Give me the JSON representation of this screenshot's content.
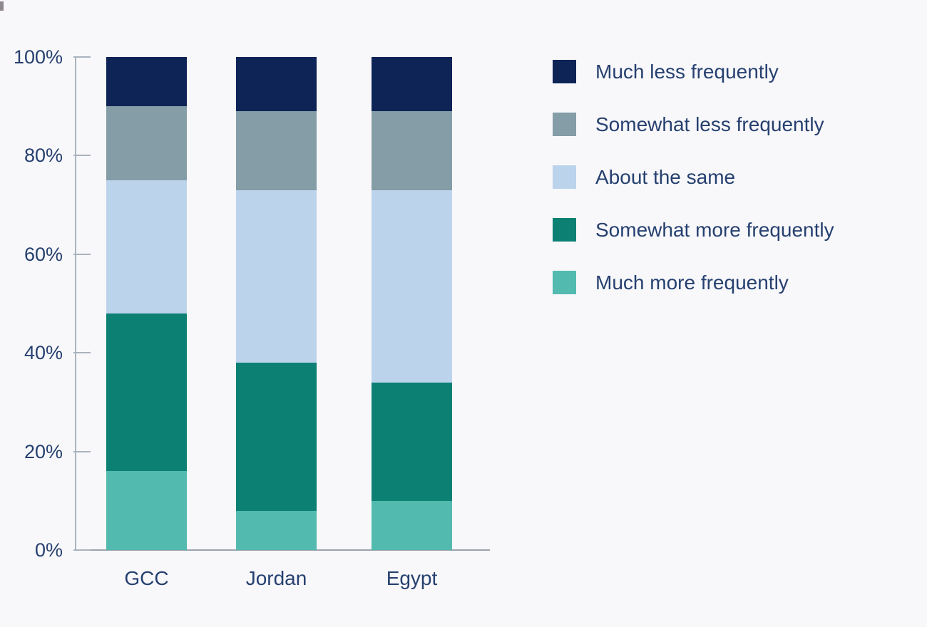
{
  "colors": {
    "background": "#f8f8fb",
    "text": "#26406f",
    "axis": "#aab3be"
  },
  "chart_data": {
    "type": "bar",
    "variant": "stacked-100-percent-column",
    "categories": [
      "GCC",
      "Jordan",
      "Egypt"
    ],
    "series": [
      {
        "name": "Much less frequently",
        "color": "#0e2456",
        "values": [
          10,
          11,
          11
        ]
      },
      {
        "name": "Somewhat less frequently",
        "color": "#849da6",
        "values": [
          15,
          16,
          16
        ]
      },
      {
        "name": "About the same",
        "color": "#bcd3ec",
        "values": [
          27,
          35,
          39
        ]
      },
      {
        "name": "Somewhat more frequently",
        "color": "#0c8073",
        "values": [
          32,
          30,
          24
        ]
      },
      {
        "name": "Much more frequently",
        "color": "#52baae",
        "values": [
          16,
          8,
          10
        ]
      }
    ],
    "stack_order_bottom_to_top": [
      "Much more frequently",
      "Somewhat more frequently",
      "About the same",
      "Somewhat less frequently",
      "Much less frequently"
    ],
    "y_axis": {
      "min": 0,
      "max": 100,
      "unit": "%",
      "ticks": [
        "0%",
        "20%",
        "40%",
        "60%",
        "80%",
        "100%"
      ]
    },
    "x_axis": {
      "labels": [
        "GCC",
        "Jordan",
        "Egypt"
      ]
    },
    "legend": {
      "position": "right",
      "items": [
        "Much less frequently",
        "Somewhat less frequently",
        "About the same",
        "Somewhat more frequently",
        "Much more frequently"
      ]
    },
    "grid": "off",
    "data_labels": "none"
  }
}
